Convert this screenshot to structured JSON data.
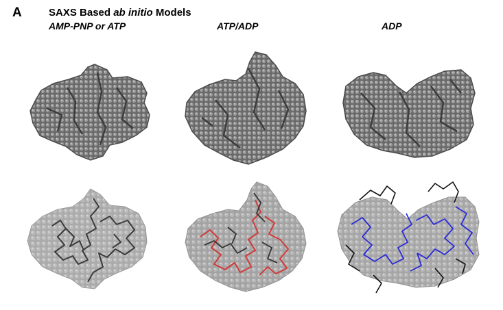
{
  "panel_label": "A",
  "title": {
    "prefix": "SAXS Based ",
    "italic": "ab initio",
    "suffix": " Models"
  },
  "columns": [
    {
      "label": "AMP-PNP or ATP"
    },
    {
      "label": "ATP/ADP"
    },
    {
      "label": "ADP"
    }
  ],
  "colors": {
    "envelope_dark": "#707070",
    "envelope_light": "#b4b4b4",
    "backbone_dark": "#2f2f2f",
    "backbone_red": "#d23a3a",
    "backbone_blue": "#2a2ad8",
    "backbone_black": "#111111"
  }
}
